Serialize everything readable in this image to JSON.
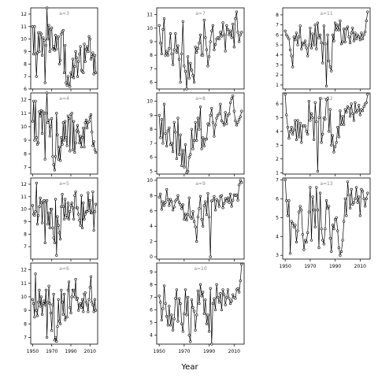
{
  "chart_data": {
    "type": "line",
    "xlabel": "Year",
    "grid": false,
    "marker": "open-circle",
    "x": [
      1950,
      1951,
      1952,
      1953,
      1954,
      1955,
      1956,
      1957,
      1958,
      1959,
      1960,
      1961,
      1962,
      1963,
      1964,
      1965,
      1966,
      1967,
      1968,
      1969,
      1970,
      1971,
      1972,
      1973,
      1974,
      1975,
      1976,
      1977,
      1978,
      1979,
      1980,
      1981,
      1982,
      1983,
      1984,
      1985,
      1986,
      1987,
      1988,
      1989,
      1990,
      1991,
      1992,
      1993,
      1994,
      1995,
      1996,
      1997,
      1998,
      1999,
      2000,
      2001,
      2002,
      2003,
      2004,
      2005,
      2006,
      2007,
      2008,
      2009,
      2010,
      2011,
      2012,
      2013,
      2014,
      2015,
      2016
    ],
    "panels": [
      {
        "label": "a=3",
        "column": 0,
        "row": 0,
        "ylim": [
          6,
          12.5
        ],
        "yticks": [
          6,
          7,
          8,
          9,
          10,
          11,
          12
        ],
        "show_xticks": false,
        "values": [
          11.0,
          8.8,
          11.0,
          8.8,
          7.0,
          8.9,
          10.5,
          9.0,
          10.5,
          10.4,
          8.7,
          10.1,
          9.9,
          6.5,
          9.5,
          12.5,
          10.0,
          11.1,
          9.0,
          10.8,
          10.9,
          9.2,
          9.4,
          9.1,
          10.3,
          9.2,
          10.1,
          10.2,
          8.0,
          8.3,
          10.4,
          10.6,
          10.7,
          7.3,
          9.5,
          6.5,
          6.3,
          7.0,
          6.4,
          6.2,
          7.3,
          7.0,
          8.4,
          6.9,
          7.8,
          9.0,
          8.5,
          7.0,
          8.2,
          8.8,
          9.4,
          7.5,
          7.4,
          7.3,
          9.6,
          8.2,
          9.2,
          9.4,
          9.0,
          10.2,
          10.0,
          8.4,
          8.6,
          8.9,
          7.2,
          8.7,
          7.3
        ]
      },
      {
        "label": "a=4",
        "column": 0,
        "row": 1,
        "ylim": [
          6.5,
          12.5
        ],
        "yticks": [
          7,
          8,
          9,
          10,
          11,
          12
        ],
        "show_xticks": false,
        "values": [
          10.4,
          11.9,
          9.0,
          11.9,
          9.2,
          8.7,
          8.8,
          11.1,
          10.8,
          11.2,
          9.5,
          11.1,
          11.0,
          7.6,
          11.0,
          12.5,
          10.3,
          10.5,
          9.3,
          10.0,
          10.6,
          7.8,
          7.2,
          6.8,
          7.8,
          11.0,
          9.4,
          7.6,
          8.5,
          7.5,
          9.2,
          8.7,
          10.3,
          9.0,
          10.4,
          9.2,
          8.6,
          10.8,
          10.6,
          8.2,
          10.9,
          11.0,
          8.3,
          10.4,
          8.1,
          8.8,
          9.7,
          10.1,
          9.6,
          8.8,
          9.3,
          8.5,
          9.2,
          9.9,
          8.5,
          10.3,
          10.5,
          9.9,
          10.3,
          10.4,
          10.7,
          10.9,
          9.6,
          8.6,
          8.9,
          8.3,
          8.1
        ]
      },
      {
        "label": "a=5",
        "column": 0,
        "row": 2,
        "ylim": [
          6,
          12.5
        ],
        "yticks": [
          7,
          8,
          9,
          10,
          11,
          12
        ],
        "show_xticks": false,
        "values": [
          10.3,
          9.6,
          9.5,
          9.8,
          12.1,
          8.8,
          9.5,
          10.2,
          10.9,
          10.5,
          8.9,
          10.6,
          10.7,
          7.3,
          10.6,
          10.7,
          8.8,
          9.7,
          8.5,
          10.0,
          10.0,
          8.5,
          7.7,
          7.3,
          10.8,
          6.3,
          9.4,
          8.7,
          8.1,
          7.6,
          10.2,
          11.2,
          10.2,
          9.2,
          10.8,
          9.5,
          9.3,
          10.5,
          9.2,
          9.8,
          10.3,
          10.5,
          10.1,
          9.2,
          11.1,
          11.4,
          10.1,
          10.1,
          9.6,
          9.1,
          8.7,
          11.1,
          8.5,
          10.5,
          9.2,
          9.6,
          9.8,
          9.8,
          11.3,
          9.9,
          10.7,
          9.7,
          9.7,
          11.4,
          8.3,
          9.8,
          10.4
        ]
      },
      {
        "label": "a=6",
        "column": 0,
        "row": 3,
        "ylim": [
          6.5,
          12.5
        ],
        "yticks": [
          7,
          8,
          9,
          10,
          11,
          12
        ],
        "show_xticks": true,
        "values": [
          9.8,
          9.5,
          8.5,
          11.7,
          9.0,
          8.6,
          9.6,
          10.5,
          9.3,
          10.0,
          8.7,
          9.5,
          9.7,
          9.4,
          10.5,
          7.0,
          9.6,
          10.8,
          9.5,
          8.8,
          7.5,
          9.4,
          10.2,
          6.8,
          7.0,
          6.7,
          7.8,
          9.8,
          8.2,
          8.0,
          10.5,
          9.6,
          8.7,
          10.2,
          8.3,
          8.5,
          8.5,
          10.5,
          11.1,
          9.2,
          8.8,
          10.0,
          10.5,
          10.5,
          10.0,
          11.3,
          9.8,
          9.9,
          9.0,
          9.4,
          9.5,
          9.2,
          9.8,
          8.9,
          10.2,
          10.3,
          9.6,
          9.4,
          8.9,
          9.8,
          10.7,
          11.5,
          9.6,
          9.4,
          8.9,
          9.8,
          9.0
        ]
      },
      {
        "label": "a=7",
        "column": 1,
        "row": 0,
        "ylim": [
          5.5,
          11.5
        ],
        "yticks": [
          6,
          7,
          8,
          9,
          10,
          11
        ],
        "show_xticks": false,
        "values": [
          10.2,
          8.9,
          8.1,
          9.9,
          10.7,
          8.0,
          8.3,
          8.0,
          8.5,
          9.6,
          8.1,
          7.3,
          8.4,
          9.6,
          8.2,
          8.7,
          7.7,
          6.0,
          8.1,
          10.5,
          7.2,
          6.8,
          5.5,
          7.9,
          6.3,
          7.4,
          6.9,
          6.5,
          6.0,
          8.6,
          8.2,
          8.5,
          8.9,
          9.5,
          8.0,
          8.0,
          10.6,
          9.3,
          8.4,
          7.2,
          7.9,
          9.0,
          9.8,
          10.2,
          8.4,
          8.8,
          9.2,
          9.3,
          9.2,
          9.7,
          9.4,
          10.4,
          9.5,
          8.3,
          10.2,
          9.9,
          9.5,
          9.8,
          9.3,
          10.3,
          8.6,
          10.7,
          11.2,
          9.7,
          9.0,
          9.5,
          9.7
        ]
      },
      {
        "label": "a=8",
        "column": 1,
        "row": 1,
        "ylim": [
          4.8,
          10.6
        ],
        "yticks": [
          5,
          6,
          7,
          8,
          9,
          10
        ],
        "show_xticks": false,
        "values": [
          9.0,
          7.4,
          8.7,
          7.0,
          9.8,
          7.7,
          6.8,
          7.9,
          8.1,
          6.9,
          7.0,
          6.4,
          8.5,
          7.8,
          5.9,
          8.8,
          6.2,
          7.6,
          5.4,
          6.5,
          5.3,
          6.9,
          4.9,
          5.0,
          6.0,
          6.2,
          8.0,
          6.6,
          7.2,
          8.5,
          7.2,
          8.8,
          8.0,
          9.6,
          6.6,
          7.4,
          6.8,
          7.3,
          7.3,
          8.4,
          8.3,
          9.0,
          9.5,
          8.5,
          7.5,
          8.3,
          8.8,
          9.0,
          9.1,
          9.8,
          8.6,
          8.5,
          8.3,
          9.2,
          8.4,
          9.0,
          9.1,
          9.9,
          10.2,
          10.4,
          9.3,
          8.6,
          8.3,
          8.5,
          8.7,
          8.9,
          9.3
        ]
      },
      {
        "label": "a=9",
        "column": 1,
        "row": 2,
        "ylim": [
          -0.3,
          10.3
        ],
        "yticks": [
          0,
          2,
          4,
          6,
          8,
          10
        ],
        "show_xticks": false,
        "values": [
          7.8,
          8.2,
          6.2,
          7.2,
          6.7,
          7.1,
          8.8,
          7.5,
          6.7,
          7.5,
          7.2,
          6.1,
          6.5,
          7.3,
          7.5,
          8.0,
          7.1,
          6.8,
          6.3,
          6.8,
          4.9,
          5.6,
          4.8,
          5.5,
          7.7,
          5.2,
          5.0,
          5.9,
          4.6,
          3.9,
          2.0,
          5.2,
          6.3,
          7.9,
          4.9,
          4.0,
          6.7,
          7.2,
          5.5,
          8.3,
          5.2,
          0.0,
          7.3,
          7.4,
          7.9,
          6.1,
          7.5,
          7.3,
          6.6,
          7.9,
          8.0,
          6.4,
          7.0,
          7.6,
          7.3,
          7.7,
          7.1,
          8.2,
          6.6,
          7.4,
          8.1,
          8.0,
          8.1,
          7.4,
          9.4,
          10.0,
          9.7
        ]
      },
      {
        "label": "a=10",
        "column": 1,
        "row": 3,
        "ylim": [
          3.3,
          9.7
        ],
        "yticks": [
          4,
          5,
          6,
          7,
          8,
          9
        ],
        "show_xticks": true,
        "values": [
          7.1,
          6.6,
          5.2,
          6.1,
          7.9,
          6.5,
          5.5,
          4.8,
          6.3,
          4.8,
          5.6,
          4.4,
          5.3,
          6.9,
          7.6,
          5.1,
          6.9,
          6.5,
          4.9,
          4.3,
          5.7,
          7.6,
          5.6,
          7.0,
          4.0,
          3.5,
          6.8,
          6.2,
          5.9,
          4.4,
          5.6,
          7.5,
          6.5,
          8.0,
          7.1,
          7.4,
          5.7,
          6.8,
          4.9,
          5.6,
          4.3,
          7.7,
          3.3,
          6.5,
          6.9,
          6.0,
          8.0,
          7.0,
          6.6,
          7.3,
          6.0,
          7.6,
          7.2,
          6.4,
          7.0,
          7.6,
          6.9,
          6.5,
          6.7,
          7.2,
          7.0,
          6.9,
          7.6,
          7.7,
          7.4,
          8.3,
          9.6
        ]
      },
      {
        "label": "a=11",
        "column": 2,
        "row": 0,
        "ylim": [
          0.6,
          8.7
        ],
        "yticks": [
          1,
          2,
          3,
          4,
          5,
          6,
          7,
          8
        ],
        "show_xticks": false,
        "values": [
          6.4,
          6.0,
          5.8,
          5.6,
          4.5,
          3.9,
          2.8,
          5.8,
          5.5,
          6.2,
          5.0,
          5.8,
          6.9,
          4.6,
          5.2,
          5.0,
          5.4,
          4.7,
          3.9,
          5.0,
          6.7,
          4.7,
          6.1,
          5.0,
          7.0,
          4.6,
          7.2,
          5.7,
          6.0,
          5.2,
          3.2,
          6.9,
          5.1,
          0.9,
          6.0,
          3.4,
          2.8,
          2.4,
          6.0,
          5.4,
          7.2,
          6.5,
          7.0,
          6.5,
          7.4,
          5.1,
          5.3,
          6.6,
          5.3,
          6.6,
          6.8,
          5.8,
          5.2,
          6.2,
          6.7,
          5.4,
          6.2,
          5.6,
          6.0,
          5.8,
          5.5,
          6.2,
          5.6,
          6.0,
          6.3,
          7.4,
          8.3
        ]
      },
      {
        "label": "a=12",
        "column": 2,
        "row": 1,
        "ylim": [
          0.9,
          6.8
        ],
        "yticks": [
          1,
          2,
          3,
          4,
          5,
          6
        ],
        "show_xticks": false,
        "values": [
          6.7,
          5.2,
          4.3,
          3.5,
          4.0,
          4.3,
          3.8,
          4.1,
          4.8,
          3.4,
          4.8,
          3.6,
          4.6,
          3.2,
          4.4,
          4.4,
          4.4,
          4.0,
          3.8,
          6.2,
          4.8,
          5.3,
          5.0,
          3.4,
          6.1,
          4.7,
          1.1,
          5.0,
          6.4,
          3.2,
          3.8,
          5.0,
          4.9,
          6.3,
          6.4,
          4.0,
          5.6,
          3.0,
          3.7,
          2.5,
          2.9,
          3.2,
          4.3,
          3.6,
          5.5,
          4.5,
          5.1,
          4.5,
          5.6,
          5.4,
          5.8,
          5.7,
          5.1,
          6.0,
          5.3,
          4.8,
          6.1,
          5.4,
          5.5,
          5.9,
          5.2,
          5.6,
          5.5,
          5.8,
          6.0,
          6.1,
          6.7
        ]
      },
      {
        "label": "a=13",
        "column": 2,
        "row": 2,
        "ylim": [
          2.8,
          7.1
        ],
        "yticks": [
          3,
          4,
          5,
          6,
          7
        ],
        "show_xticks": true,
        "values": [
          7.0,
          5.9,
          5.1,
          5.9,
          3.1,
          4.8,
          4.7,
          4.5,
          4.6,
          3.7,
          4.3,
          5.3,
          5.6,
          5.4,
          4.1,
          3.3,
          3.8,
          3.7,
          4.2,
          5.3,
          6.6,
          3.8,
          6.1,
          5.4,
          4.5,
          6.6,
          5.4,
          3.4,
          6.3,
          4.4,
          3.8,
          3.6,
          4.4,
          5.9,
          5.5,
          5.6,
          3.9,
          3.2,
          4.6,
          4.4,
          4.9,
          5.0,
          4.3,
          3.4,
          3.0,
          3.2,
          3.8,
          4.8,
          6.0,
          5.1,
          6.9,
          6.2,
          5.5,
          6.5,
          5.7,
          5.8,
          6.0,
          6.6,
          5.8,
          6.1,
          5.1,
          6.5,
          6.4,
          6.0,
          5.6,
          6.0,
          6.3
        ]
      }
    ],
    "xticks": [
      1950,
      1970,
      1990,
      2010
    ]
  }
}
